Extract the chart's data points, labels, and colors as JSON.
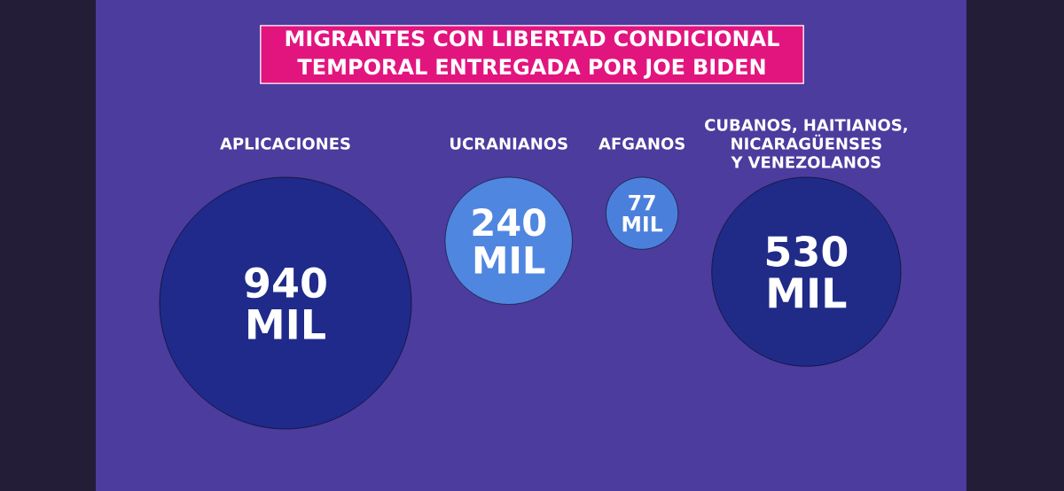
{
  "chart_data": {
    "type": "other",
    "title": "MIGRANTES CON LIBERTAD CONDICIONAL TEMPORAL ENTREGADA POR JOE BIDEN",
    "categories": [
      "APLICACIONES",
      "UCRANIANOS",
      "AFGANOS",
      "CUBANOS, HAITIANOS, NICARAGÜENSES Y VENEZOLANOS"
    ],
    "values": [
      940,
      240,
      77,
      530
    ],
    "value_labels": [
      "940 MIL",
      "240 MIL",
      "77 MIL",
      "530 MIL"
    ],
    "colors": [
      "#1f2a8a",
      "#4f86e0",
      "#4a80dc",
      "#202b88"
    ]
  }
}
